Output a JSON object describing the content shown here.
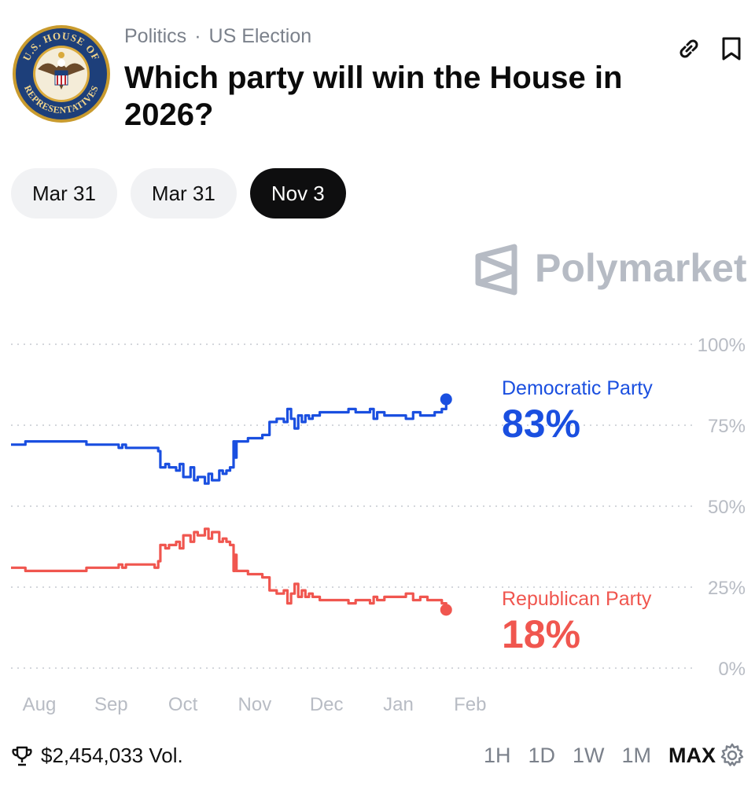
{
  "header": {
    "logo_text": "U.S. HOUSE OF REPRESENTATIVES",
    "category": "Politics",
    "separator": "·",
    "subcategory": "US Election",
    "title": "Which party will win the House in 2026?",
    "icons": [
      "link-icon",
      "bookmark-icon"
    ]
  },
  "tabs": [
    {
      "label": "Mar 31",
      "active": false
    },
    {
      "label": "Mar 31",
      "active": false
    },
    {
      "label": "Nov 3",
      "active": true
    }
  ],
  "watermark": "Polymarket",
  "colors": {
    "democratic": "#1a4fe0",
    "republican": "#f0564f",
    "grid": "#d4d7dc",
    "axis_text": "#b8bcc4"
  },
  "chart_data": {
    "type": "line",
    "x_labels": [
      "Aug",
      "Sep",
      "Oct",
      "Nov",
      "Dec",
      "Jan",
      "Feb"
    ],
    "y_ticks": [
      "100%",
      "75%",
      "50%",
      "25%",
      "0%"
    ],
    "ylim": [
      0,
      100
    ],
    "grid": true,
    "legend": "end-of-line labels",
    "series": [
      {
        "name": "Democratic Party",
        "last_label": "83%",
        "color": "#1a4fe0",
        "x": [
          0,
          0.2,
          0.4,
          1.0,
          1.05,
          1.1,
          1.5,
          1.55,
          1.6,
          2.0,
          2.05,
          2.08,
          2.15,
          2.2,
          2.3,
          2.35,
          2.4,
          2.5,
          2.55,
          2.6,
          2.7,
          2.75,
          2.8,
          2.9,
          2.95,
          3.0,
          3.05,
          3.1,
          3.12,
          3.14,
          3.2,
          3.3,
          3.45,
          3.5,
          3.55,
          3.6,
          3.7,
          3.8,
          3.85,
          3.9,
          3.95,
          4.0,
          4.05,
          4.1,
          4.15,
          4.2,
          4.25,
          4.3,
          4.4,
          4.5,
          4.6,
          4.7,
          4.8,
          4.9,
          5.0,
          5.05,
          5.1,
          5.2,
          5.3,
          5.4,
          5.5,
          5.6,
          5.7,
          5.8,
          5.9,
          6.0,
          6.06
        ],
        "values": [
          69,
          70,
          70,
          70,
          69,
          69,
          68,
          69,
          68,
          68,
          67,
          62,
          63,
          62,
          61,
          63,
          59,
          62,
          58,
          59,
          57,
          60,
          58,
          61,
          60,
          61,
          62,
          70,
          65,
          70,
          70,
          71,
          71,
          72,
          72,
          76,
          77,
          76,
          80,
          77,
          74,
          78,
          76,
          78,
          77,
          78,
          78,
          79,
          79,
          79,
          79,
          80,
          79,
          79,
          80,
          77,
          79,
          78,
          78,
          78,
          77,
          79,
          78,
          78,
          79,
          80,
          83
        ]
      },
      {
        "name": "Republican Party",
        "last_label": "18%",
        "color": "#f0564f",
        "x": [
          0,
          0.2,
          0.4,
          1.0,
          1.05,
          1.1,
          1.5,
          1.55,
          1.6,
          2.0,
          2.05,
          2.08,
          2.15,
          2.2,
          2.3,
          2.35,
          2.4,
          2.5,
          2.55,
          2.6,
          2.7,
          2.75,
          2.8,
          2.9,
          2.95,
          3.0,
          3.05,
          3.1,
          3.12,
          3.14,
          3.2,
          3.3,
          3.45,
          3.5,
          3.55,
          3.6,
          3.7,
          3.8,
          3.85,
          3.9,
          3.95,
          4.0,
          4.05,
          4.1,
          4.15,
          4.2,
          4.25,
          4.3,
          4.4,
          4.5,
          4.6,
          4.7,
          4.8,
          4.9,
          5.0,
          5.05,
          5.1,
          5.2,
          5.3,
          5.4,
          5.5,
          5.6,
          5.7,
          5.8,
          5.9,
          6.0,
          6.06
        ],
        "values": [
          31,
          30,
          30,
          30,
          31,
          31,
          32,
          31,
          32,
          31,
          33,
          38,
          37,
          38,
          39,
          37,
          41,
          39,
          42,
          41,
          43,
          40,
          42,
          39,
          40,
          39,
          38,
          30,
          35,
          30,
          30,
          29,
          29,
          28,
          28,
          24,
          23,
          24,
          20,
          23,
          26,
          22,
          24,
          22,
          23,
          22,
          22,
          21,
          21,
          21,
          21,
          20,
          21,
          21,
          20,
          22,
          21,
          22,
          22,
          22,
          23,
          21,
          22,
          21,
          21,
          20,
          18
        ]
      }
    ]
  },
  "footer": {
    "volume": "$2,454,033 Vol.",
    "ranges": [
      {
        "label": "1H",
        "active": false
      },
      {
        "label": "1D",
        "active": false
      },
      {
        "label": "1W",
        "active": false
      },
      {
        "label": "1M",
        "active": false
      },
      {
        "label": "MAX",
        "active": true
      }
    ]
  }
}
